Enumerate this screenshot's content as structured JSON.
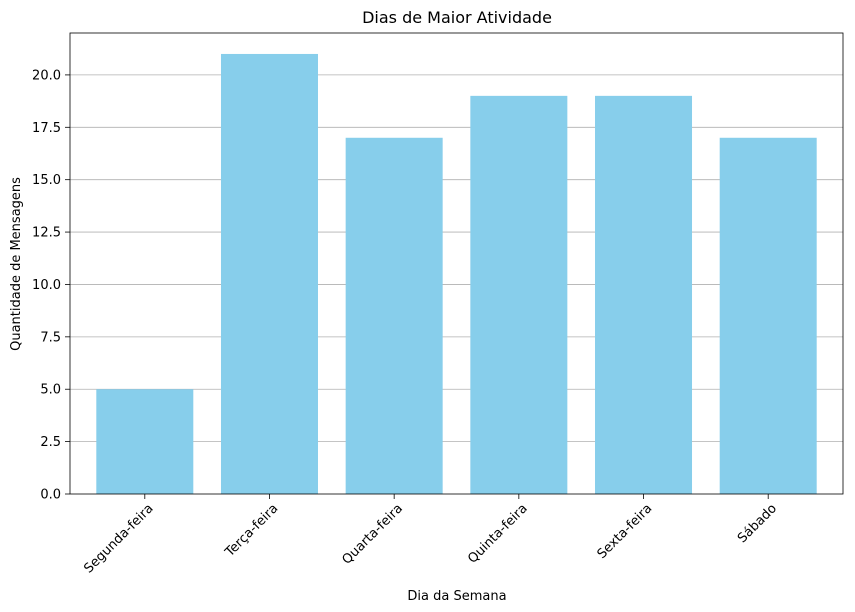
{
  "chart_data": {
    "type": "bar",
    "title": "Dias de Maior Atividade",
    "xlabel": "Dia da Semana",
    "ylabel": "Quantidade de Mensagens",
    "categories": [
      "Segunda-feira",
      "Terça-feira",
      "Quarta-feira",
      "Quinta-feira",
      "Sexta-feira",
      "Sábado"
    ],
    "values": [
      5,
      21,
      17,
      19,
      19,
      17
    ],
    "ylim": [
      0,
      22
    ],
    "yticks": [
      "0.0",
      "2.5",
      "5.0",
      "7.5",
      "10.0",
      "12.5",
      "15.0",
      "17.5",
      "20.0"
    ],
    "grid": "horizontal",
    "legend": "none",
    "bar_color": "#87CEEB",
    "grid_color": "#b0b0b0"
  }
}
